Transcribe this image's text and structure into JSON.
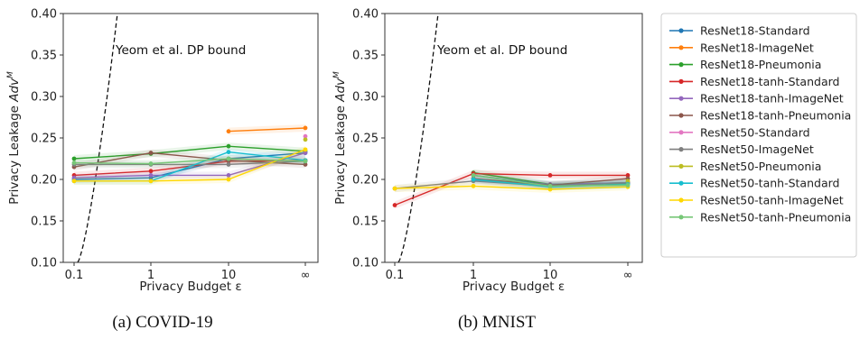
{
  "chart_data": [
    {
      "type": "line",
      "panel": "covid",
      "caption": "(a) COVID-19",
      "xlabel": "Privacy Budget ε",
      "ylabel_prefix": "Privacy Leakage ",
      "ylabel_math": "Adv",
      "ylabel_sup": "M",
      "x_ticks": [
        "0.1",
        "1",
        "10",
        "∞"
      ],
      "ylim": [
        0.1,
        0.4
      ],
      "y_ticks": [
        "0.10",
        "0.15",
        "0.20",
        "0.25",
        "0.30",
        "0.35",
        "0.40"
      ],
      "annotation": "Yeom et al. DP bound",
      "series": [
        {
          "name": "ResNet18-Standard",
          "color": "#1f77b4",
          "values": [
            0.2,
            0.202,
            0.225,
            0.232
          ]
        },
        {
          "name": "ResNet18-ImageNet",
          "color": "#ff7f0e",
          "values": [
            null,
            null,
            0.258,
            0.262
          ]
        },
        {
          "name": "ResNet18-Pneumonia",
          "color": "#2ca02c",
          "values": [
            0.225,
            0.231,
            0.24,
            0.234
          ]
        },
        {
          "name": "ResNet18-tanh-Standard",
          "color": "#d62728",
          "values": [
            0.205,
            0.21,
            0.222,
            0.223
          ]
        },
        {
          "name": "ResNet18-tanh-ImageNet",
          "color": "#9467bd",
          "values": [
            0.202,
            0.205,
            0.205,
            0.232
          ]
        },
        {
          "name": "ResNet18-tanh-Pneumonia",
          "color": "#8c564b",
          "values": [
            0.215,
            0.232,
            0.223,
            0.218
          ]
        },
        {
          "name": "ResNet50-Standard",
          "color": "#e377c2",
          "values": [
            null,
            null,
            null,
            0.252
          ]
        },
        {
          "name": "ResNet50-ImageNet",
          "color": "#7f7f7f",
          "values": [
            0.218,
            0.218,
            0.218,
            0.222
          ]
        },
        {
          "name": "ResNet50-Pneumonia",
          "color": "#bcbd22",
          "values": [
            null,
            null,
            null,
            0.248
          ]
        },
        {
          "name": "ResNet50-tanh-Standard",
          "color": "#17becf",
          "values": [
            0.198,
            0.198,
            0.233,
            0.223
          ]
        },
        {
          "name": "ResNet50-tanh-ImageNet",
          "color": "#ffd700",
          "values": [
            0.198,
            0.198,
            0.2,
            0.236
          ]
        },
        {
          "name": "ResNet50-tanh-Pneumonia",
          "color": "#77c777",
          "values": [
            0.22,
            0.219,
            0.225,
            0.222
          ]
        }
      ]
    },
    {
      "type": "line",
      "panel": "mnist",
      "caption": "(b) MNIST",
      "xlabel": "Privacy Budget ε",
      "ylabel_prefix": "Privacy Leakage ",
      "ylabel_math": "Adv",
      "ylabel_sup": "M",
      "x_ticks": [
        "0.1",
        "1",
        "10",
        "∞"
      ],
      "ylim": [
        0.1,
        0.4
      ],
      "y_ticks": [
        "0.10",
        "0.15",
        "0.20",
        "0.25",
        "0.30",
        "0.35",
        "0.40"
      ],
      "annotation": "Yeom et al. DP bound",
      "series": [
        {
          "name": "ResNet18-Standard",
          "color": "#1f77b4",
          "values": [
            null,
            0.205,
            0.193,
            0.195
          ]
        },
        {
          "name": "ResNet18-ImageNet",
          "color": "#ff7f0e",
          "values": [
            null,
            null,
            null,
            null
          ]
        },
        {
          "name": "ResNet18-Pneumonia",
          "color": "#2ca02c",
          "values": [
            null,
            0.208,
            0.194,
            0.196
          ]
        },
        {
          "name": "ResNet18-tanh-Standard",
          "color": "#d62728",
          "values": [
            0.169,
            0.207,
            0.205,
            0.205
          ]
        },
        {
          "name": "ResNet18-tanh-ImageNet",
          "color": "#9467bd",
          "values": [
            null,
            0.199,
            0.194,
            0.196
          ]
        },
        {
          "name": "ResNet18-tanh-Pneumonia",
          "color": "#8c564b",
          "values": [
            null,
            0.201,
            0.193,
            0.201
          ]
        },
        {
          "name": "ResNet50-Standard",
          "color": "#e377c2",
          "values": [
            null,
            null,
            null,
            null
          ]
        },
        {
          "name": "ResNet50-ImageNet",
          "color": "#7f7f7f",
          "values": [
            0.189,
            0.198,
            0.192,
            0.196
          ]
        },
        {
          "name": "ResNet50-Pneumonia",
          "color": "#bcbd22",
          "values": [
            null,
            null,
            null,
            0.198
          ]
        },
        {
          "name": "ResNet50-tanh-Standard",
          "color": "#17becf",
          "values": [
            null,
            0.2,
            0.191,
            0.194
          ]
        },
        {
          "name": "ResNet50-tanh-ImageNet",
          "color": "#ffd700",
          "values": [
            0.189,
            0.192,
            0.188,
            0.191
          ]
        },
        {
          "name": "ResNet50-tanh-Pneumonia",
          "color": "#77c777",
          "values": [
            null,
            0.205,
            0.192,
            0.193
          ]
        }
      ]
    }
  ],
  "legend": [
    "ResNet18-Standard",
    "ResNet18-ImageNet",
    "ResNet18-Pneumonia",
    "ResNet18-tanh-Standard",
    "ResNet18-tanh-ImageNet",
    "ResNet18-tanh-Pneumonia",
    "ResNet50-Standard",
    "ResNet50-ImageNet",
    "ResNet50-Pneumonia",
    "ResNet50-tanh-Standard",
    "ResNet50-tanh-ImageNet",
    "ResNet50-tanh-Pneumonia"
  ]
}
